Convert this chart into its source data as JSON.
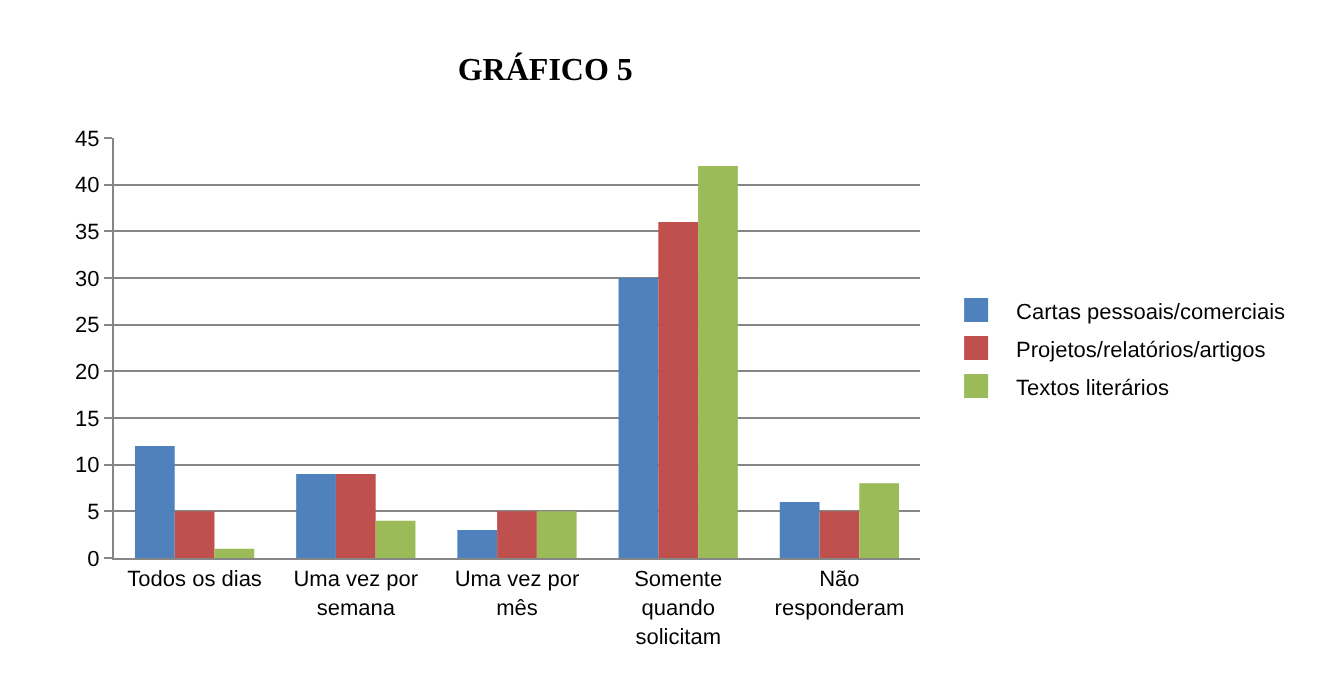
{
  "chart_data": {
    "type": "bar",
    "title": "GRÁFICO 5",
    "categories": [
      "Todos os dias",
      "Uma vez por semana",
      "Uma vez por mês",
      "Somente quando solicitam",
      "Não responderam"
    ],
    "series": [
      {
        "name": "Cartas pessoais/comerciais",
        "color": "#4f81bd",
        "values": [
          12,
          9,
          3,
          30,
          6
        ]
      },
      {
        "name": "Projetos/relatórios/artigos",
        "color": "#c0504d",
        "values": [
          5,
          9,
          5,
          36,
          5
        ]
      },
      {
        "name": "Textos literários",
        "color": "#9bbb59",
        "values": [
          1,
          4,
          5,
          42,
          8
        ]
      }
    ],
    "ylim": [
      0,
      45
    ],
    "yticks": [
      0,
      5,
      10,
      15,
      20,
      25,
      30,
      35,
      40,
      45
    ],
    "grid": "y",
    "legend": "right"
  }
}
